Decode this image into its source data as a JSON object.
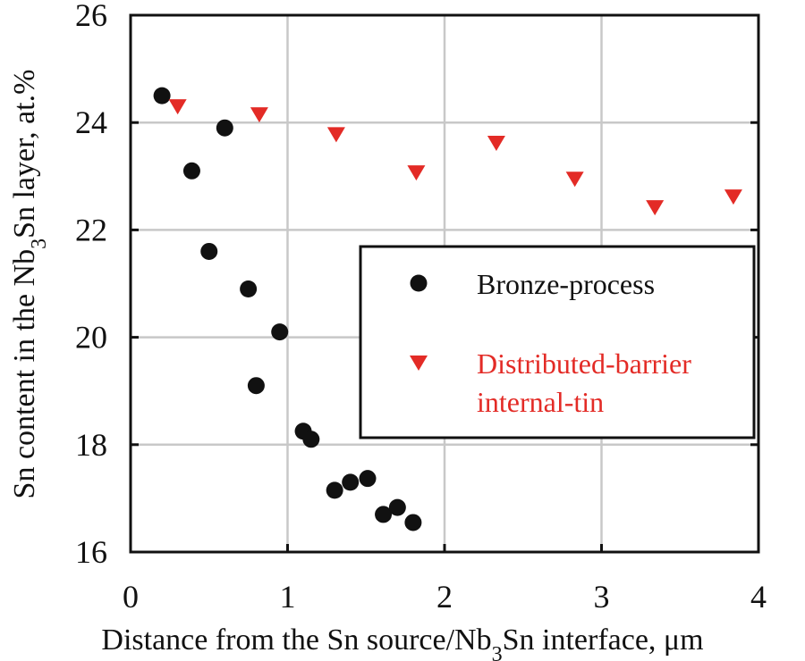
{
  "chart_data": {
    "type": "scatter",
    "title": "",
    "xlabel": "Distance from the Sn source/Nb3Sn interface, μm",
    "xlabel_parts": {
      "pre": "Distance from the Sn source/Nb",
      "sub": "3",
      "post": "Sn interface, μm"
    },
    "ylabel": "Sn content in the Nb3Sn layer, at.%",
    "ylabel_parts": {
      "pre": "Sn content in the Nb",
      "sub": "3",
      "post": "Sn layer, at.%"
    },
    "xlim": [
      0,
      4
    ],
    "ylim": [
      16,
      26
    ],
    "xticks": [
      "0",
      "1",
      "2",
      "3",
      "4"
    ],
    "yticks": [
      "16",
      "18",
      "20",
      "22",
      "24",
      "26"
    ],
    "grid": true,
    "legend_position": "center-right",
    "series": [
      {
        "name": "Bronze-process",
        "marker": "circle",
        "color": "#111111",
        "points": [
          [
            0.2,
            24.5
          ],
          [
            0.39,
            23.1
          ],
          [
            0.6,
            23.9
          ],
          [
            0.5,
            21.6
          ],
          [
            0.75,
            20.9
          ],
          [
            0.95,
            20.1
          ],
          [
            0.8,
            19.1
          ],
          [
            1.1,
            18.25
          ],
          [
            1.15,
            18.1
          ],
          [
            1.3,
            17.15
          ],
          [
            1.4,
            17.3
          ],
          [
            1.51,
            17.37
          ],
          [
            1.61,
            16.7
          ],
          [
            1.7,
            16.83
          ],
          [
            1.8,
            16.55
          ]
        ]
      },
      {
        "name": "Distributed-barrier internal-tin",
        "name_lines": [
          "Distributed-barrier",
          "internal-tin"
        ],
        "marker": "triangle-down",
        "color": "#E32B26",
        "points": [
          [
            0.3,
            24.3
          ],
          [
            0.82,
            24.15
          ],
          [
            1.31,
            23.78
          ],
          [
            1.82,
            23.07
          ],
          [
            2.33,
            23.62
          ],
          [
            2.83,
            22.95
          ],
          [
            3.34,
            22.42
          ],
          [
            3.84,
            22.62
          ]
        ]
      }
    ]
  }
}
